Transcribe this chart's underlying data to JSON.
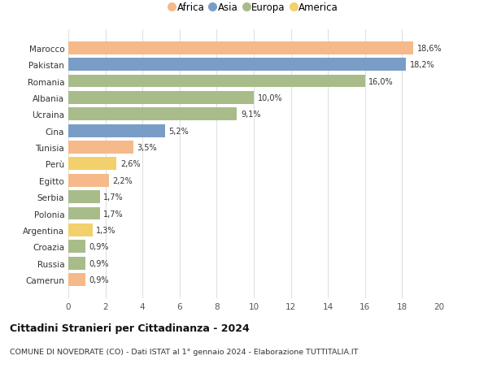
{
  "countries": [
    "Marocco",
    "Pakistan",
    "Romania",
    "Albania",
    "Ucraina",
    "Cina",
    "Tunisia",
    "Perù",
    "Egitto",
    "Serbia",
    "Polonia",
    "Argentina",
    "Croazia",
    "Russia",
    "Camerun"
  ],
  "values": [
    18.6,
    18.2,
    16.0,
    10.0,
    9.1,
    5.2,
    3.5,
    2.6,
    2.2,
    1.7,
    1.7,
    1.3,
    0.9,
    0.9,
    0.9
  ],
  "labels": [
    "18,6%",
    "18,2%",
    "16,0%",
    "10,0%",
    "9,1%",
    "5,2%",
    "3,5%",
    "2,6%",
    "2,2%",
    "1,7%",
    "1,7%",
    "1,3%",
    "0,9%",
    "0,9%",
    "0,9%"
  ],
  "continents": [
    "Africa",
    "Asia",
    "Europa",
    "Europa",
    "Europa",
    "Asia",
    "Africa",
    "America",
    "Africa",
    "Europa",
    "Europa",
    "America",
    "Europa",
    "Europa",
    "Africa"
  ],
  "colors": {
    "Africa": "#F5B98A",
    "Asia": "#7A9DC8",
    "Europa": "#A8BC8A",
    "America": "#F2D06B"
  },
  "title": "Cittadini Stranieri per Cittadinanza - 2024",
  "subtitle": "COMUNE DI NOVEDRATE (CO) - Dati ISTAT al 1° gennaio 2024 - Elaborazione TUTTITALIA.IT",
  "xlim": [
    0,
    20
  ],
  "xticks": [
    0,
    2,
    4,
    6,
    8,
    10,
    12,
    14,
    16,
    18,
    20
  ],
  "background_color": "#ffffff",
  "grid_color": "#e0e0e0"
}
